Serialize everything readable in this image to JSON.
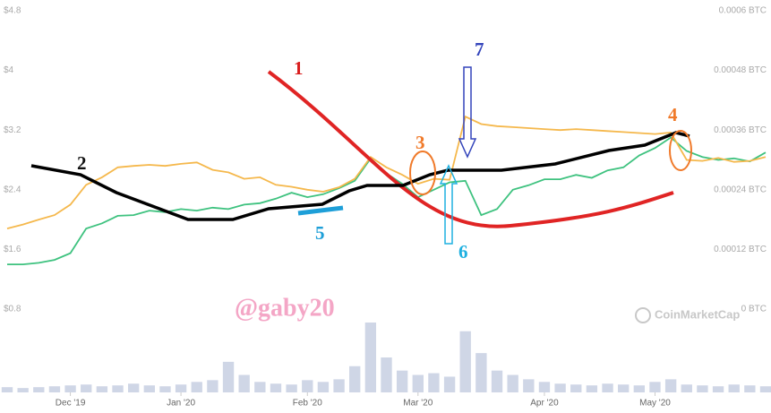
{
  "chart_data": {
    "type": "line",
    "categories": [
      null,
      null,
      null,
      null,
      "Dec '19",
      null,
      null,
      null,
      null,
      null,
      null,
      "Jan '20",
      null,
      null,
      null,
      null,
      null,
      null,
      null,
      "Feb '20",
      null,
      null,
      null,
      null,
      null,
      null,
      "Mar '20",
      null,
      null,
      null,
      null,
      null,
      null,
      null,
      "Apr '20",
      null,
      null,
      null,
      null,
      null,
      null,
      "May '20",
      null,
      null,
      null,
      null,
      null,
      null,
      null
    ],
    "series": [
      {
        "color": "#3ec27f",
        "values": [
          1.4,
          1.4,
          1.42,
          1.46,
          1.55,
          1.88,
          1.95,
          2.05,
          2.06,
          2.12,
          2.1,
          2.14,
          2.12,
          2.16,
          2.14,
          2.2,
          2.22,
          2.28,
          2.36,
          2.3,
          2.34,
          2.42,
          2.52,
          2.82,
          2.62,
          2.48,
          2.3,
          2.4,
          2.5,
          2.52,
          2.06,
          2.14,
          2.4,
          2.46,
          2.54,
          2.54,
          2.6,
          2.56,
          2.66,
          2.7,
          2.86,
          2.96,
          3.1,
          2.92,
          2.84,
          2.8,
          2.82,
          2.78,
          2.9
        ]
      },
      {
        "color": "#f5b84c",
        "axis": "y2",
        "values": [
          0.000162,
          0.00017,
          0.00018,
          0.000189,
          0.00021,
          0.00025,
          0.000265,
          0.000285,
          0.000288,
          0.00029,
          0.000288,
          0.000292,
          0.000295,
          0.00028,
          0.000275,
          0.000262,
          0.000265,
          0.00025,
          0.000246,
          0.00024,
          0.000236,
          0.000245,
          0.000262,
          0.000306,
          0.000285,
          0.00027,
          0.000252,
          0.000262,
          0.00026,
          0.000387,
          0.000372,
          0.000368,
          0.000366,
          0.000364,
          0.000362,
          0.00036,
          0.000362,
          0.00036,
          0.000358,
          0.000356,
          0.000354,
          0.000352,
          0.000355,
          0.0003,
          0.000298,
          0.000304,
          0.000296,
          0.000298,
          0.000306
        ]
      }
    ],
    "volume": [
      6,
      5,
      6,
      7,
      8,
      9,
      7,
      8,
      10,
      8,
      7,
      9,
      12,
      14,
      35,
      20,
      12,
      10,
      9,
      14,
      12,
      15,
      30,
      80,
      40,
      25,
      20,
      22,
      18,
      70,
      45,
      25,
      20,
      15,
      12,
      10,
      9,
      8,
      10,
      9,
      8,
      12,
      15,
      9,
      8,
      7,
      9,
      8,
      7
    ],
    "volume_color": "#cfd6e6",
    "ylim": [
      0.8,
      4.8
    ],
    "yticks": [
      {
        "value": 0.8,
        "label": "$0.8"
      },
      {
        "value": 1.6,
        "label": "$1.6"
      },
      {
        "value": 2.4,
        "label": "$2.4"
      },
      {
        "value": 3.2,
        "label": "$3.2"
      },
      {
        "value": 4,
        "label": "$4"
      },
      {
        "value": 4.8,
        "label": "$4.8"
      }
    ],
    "y2lim": [
      0,
      0.0006
    ],
    "y2ticks": [
      {
        "value": 0,
        "label": "0 BTC"
      },
      {
        "value": 0.00012,
        "label": "0.00012 BTC"
      },
      {
        "value": 0.00024,
        "label": "0.00024 BTC"
      },
      {
        "value": 0.00036,
        "label": "0.00036 BTC"
      },
      {
        "value": 0.00048,
        "label": "0.00048 BTC"
      },
      {
        "value": 0.0006,
        "label": "0.0006 BTC"
      }
    ],
    "annotations": [
      "1",
      "2",
      "3",
      "4",
      "5",
      "6",
      "7"
    ],
    "watermark": "@gaby20",
    "source": "CoinMarketCap"
  }
}
